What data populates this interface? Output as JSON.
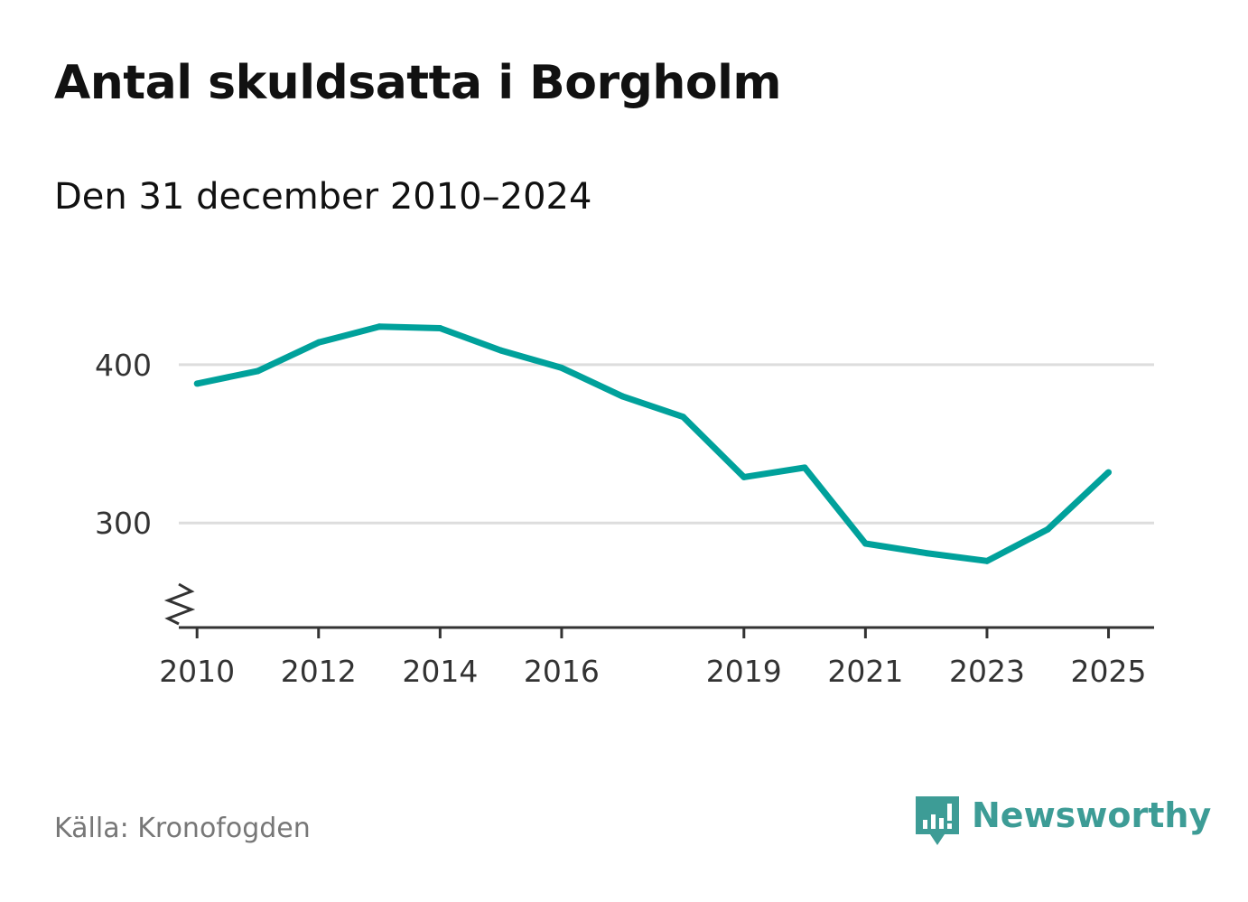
{
  "title": "Antal skuldsatta i Borgholm",
  "subtitle": "Den 31 december 2010–2024",
  "source": "Källa: Kronofogden",
  "brand": {
    "name": "Newsworthy",
    "icon": "newsworthy-logo-icon",
    "color": "#3d9c96"
  },
  "chart_data": {
    "type": "line",
    "title": "Antal skuldsatta i Borgholm",
    "xlabel": "",
    "ylabel": "",
    "line_color": "#00a19b",
    "grid": true,
    "y_axis_break": true,
    "xlim": [
      2009.7,
      2025.75
    ],
    "ylim": [
      234,
      425
    ],
    "x_ticks": [
      2010,
      2012,
      2014,
      2016,
      2019,
      2021,
      2023,
      2025
    ],
    "y_ticks": [
      300,
      400
    ],
    "series": [
      {
        "name": "Antal skuldsatta",
        "x": [
          2010,
          2011,
          2012,
          2013,
          2014,
          2015,
          2016,
          2017,
          2018,
          2019,
          2020,
          2021,
          2022,
          2023,
          2024,
          2025
        ],
        "values": [
          388,
          396,
          414,
          424,
          423,
          409,
          398,
          380,
          367,
          329,
          335,
          287,
          281,
          276,
          296,
          332
        ]
      }
    ]
  }
}
